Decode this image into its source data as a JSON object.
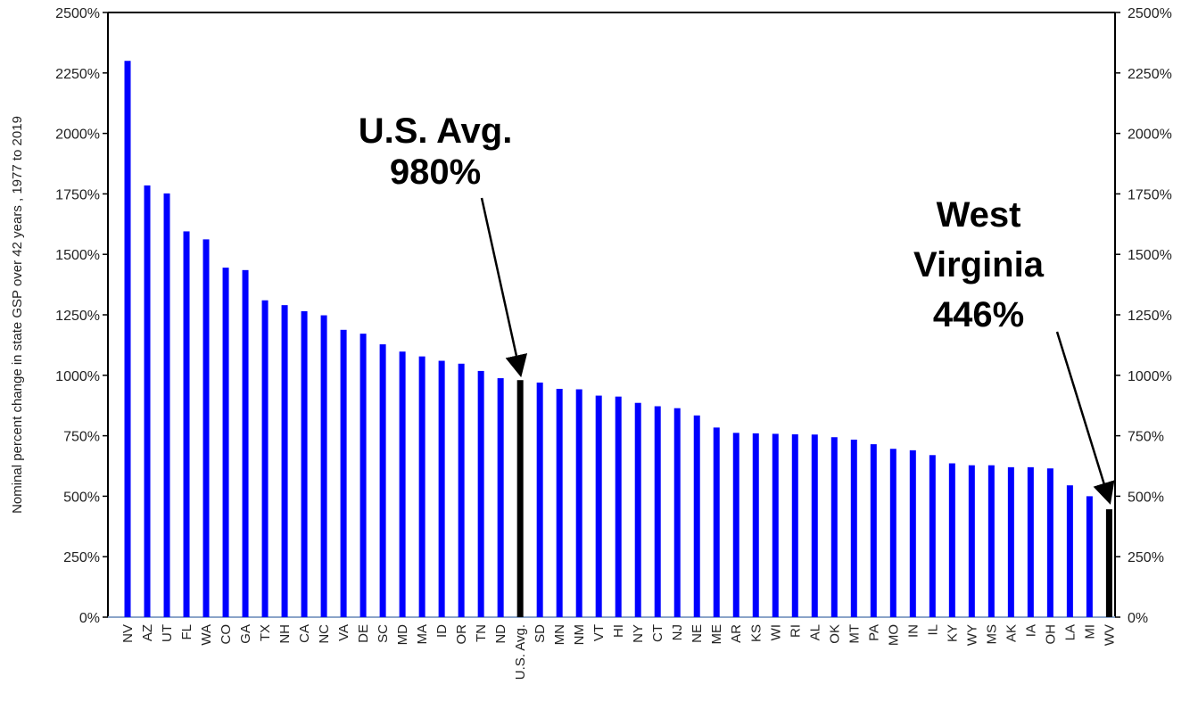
{
  "chart_data": {
    "type": "bar",
    "title": "",
    "xlabel": "",
    "ylabel": "Nominal percent change in state GSP over 42 years , 1977 to 2019",
    "ylim": [
      0,
      2500
    ],
    "yticks": [
      0,
      250,
      500,
      750,
      1000,
      1250,
      1500,
      1750,
      2000,
      2250,
      2500
    ],
    "tick_suffix": "%",
    "grid": false,
    "legend": "none",
    "categories": [
      "NV",
      "AZ",
      "UT",
      "FL",
      "WA",
      "CO",
      "GA",
      "TX",
      "NH",
      "CA",
      "NC",
      "VA",
      "DE",
      "SC",
      "MD",
      "MA",
      "ID",
      "OR",
      "TN",
      "ND",
      "U.S. Avg.",
      "SD",
      "MN",
      "NM",
      "VT",
      "HI",
      "NY",
      "CT",
      "NJ",
      "NE",
      "ME",
      "AR",
      "KS",
      "WI",
      "RI",
      "AL",
      "OK",
      "MT",
      "PA",
      "MO",
      "IN",
      "IL",
      "KY",
      "WY",
      "MS",
      "AK",
      "IA",
      "OH",
      "LA",
      "MI",
      "WV"
    ],
    "values": [
      2300,
      1785,
      1752,
      1595,
      1562,
      1445,
      1435,
      1310,
      1290,
      1265,
      1248,
      1188,
      1172,
      1128,
      1098,
      1078,
      1060,
      1048,
      1018,
      988,
      980,
      970,
      944,
      942,
      916,
      912,
      886,
      872,
      864,
      834,
      784,
      762,
      760,
      758,
      756,
      755,
      744,
      734,
      715,
      696,
      690,
      670,
      636,
      628,
      628,
      620,
      620,
      615,
      545,
      500,
      446
    ],
    "highlight": [
      "U.S. Avg.",
      "WV"
    ],
    "colors": {
      "bar": "#0000ff",
      "highlight": "#000000",
      "axis": "#000000",
      "baseline": "#8aa4c8"
    },
    "annotations": [
      {
        "lines": [
          "U.S. Avg.",
          "980%"
        ],
        "target": "U.S. Avg."
      },
      {
        "lines": [
          "West",
          "Virginia",
          "446%"
        ],
        "target": "WV"
      }
    ]
  }
}
